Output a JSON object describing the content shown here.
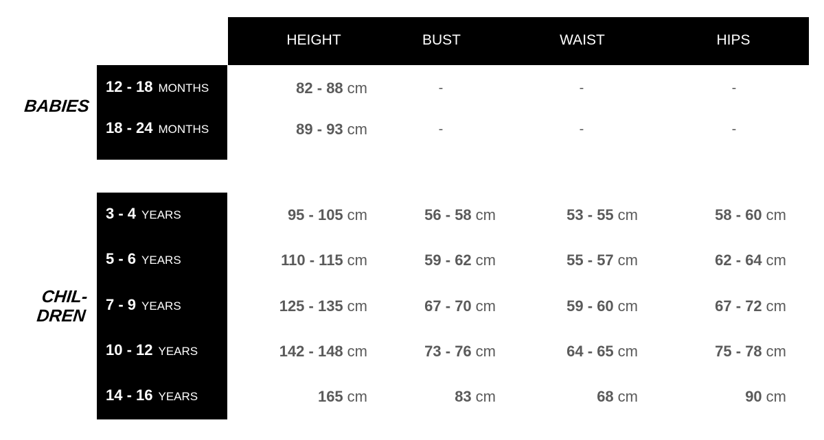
{
  "columns": [
    "HEIGHT",
    "BUST",
    "WAIST",
    "HIPS"
  ],
  "unit": "cm",
  "groups": [
    {
      "label": "BABIES",
      "rows": [
        {
          "range": "12 - 18",
          "unit": "MONTHS",
          "values": [
            "82 - 88",
            "-",
            "-",
            "-"
          ]
        },
        {
          "range": "18 - 24",
          "unit": "MONTHS",
          "values": [
            "89 - 93",
            "-",
            "-",
            "-"
          ]
        }
      ]
    },
    {
      "label_line1": "CHIL-",
      "label_line2": "DREN",
      "rows": [
        {
          "range": "3 - 4",
          "unit": "YEARS",
          "values": [
            "95 - 105",
            "56 - 58",
            "53 - 55",
            "58 - 60"
          ]
        },
        {
          "range": "5 - 6",
          "unit": "YEARS",
          "values": [
            "110 - 115",
            "59 - 62",
            "55 - 57",
            "62 - 64"
          ]
        },
        {
          "range": "7 - 9",
          "unit": "YEARS",
          "values": [
            "125 - 135",
            "67 - 70",
            "59 - 60",
            "67 - 72"
          ]
        },
        {
          "range": "10 - 12",
          "unit": "YEARS",
          "values": [
            "142 - 148",
            "73 - 76",
            "64 - 65",
            "75 - 78"
          ]
        },
        {
          "range": "14 - 16",
          "unit": "YEARS",
          "values": [
            "165",
            "83",
            "68",
            "90"
          ]
        }
      ]
    }
  ]
}
